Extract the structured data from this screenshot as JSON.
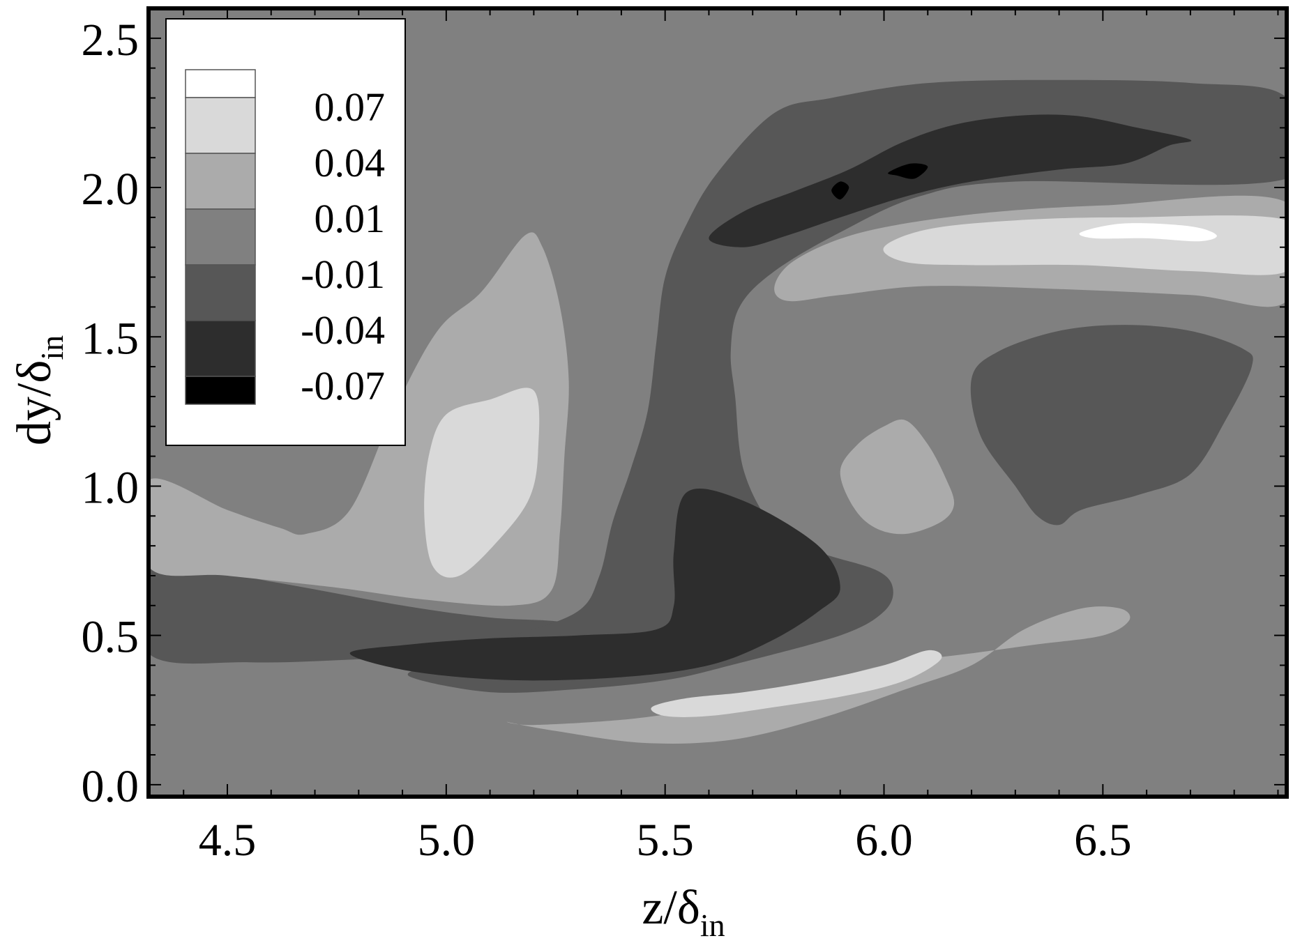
{
  "chart_data": {
    "type": "contour",
    "xlabel": {
      "base": "z/δ",
      "sub": "in"
    },
    "ylabel": {
      "base": "dy/δ",
      "sub": "in"
    },
    "xlim": [
      4.32,
      6.92
    ],
    "ylim": [
      -0.04,
      2.6
    ],
    "x_ticks": [
      {
        "value": 4.5,
        "label": "4.5"
      },
      {
        "value": 5.0,
        "label": "5.0"
      },
      {
        "value": 5.5,
        "label": "5.5"
      },
      {
        "value": 6.0,
        "label": "6.0"
      },
      {
        "value": 6.5,
        "label": "6.5"
      }
    ],
    "y_ticks": [
      {
        "value": 0.0,
        "label": "0.0"
      },
      {
        "value": 0.5,
        "label": "0.5"
      },
      {
        "value": 1.0,
        "label": "1.0"
      },
      {
        "value": 1.5,
        "label": "1.5"
      },
      {
        "value": 2.0,
        "label": "2.0"
      },
      {
        "value": 2.5,
        "label": "2.5"
      }
    ],
    "legend": {
      "placement": "top-left",
      "levels": [
        "0.07",
        "0.04",
        "0.01",
        "-0.01",
        "-0.04",
        "-0.07"
      ],
      "band_colors": [
        "#ffffff",
        "#d9d9d9",
        "#ababab",
        "#808080",
        "#575757",
        "#2d2d2d",
        "#000000"
      ]
    },
    "background_color": "#808080",
    "regions": [
      {
        "name": "left-lower-neg",
        "color": "#575757",
        "points": [
          [
            4.32,
            0.74
          ],
          [
            4.6,
            0.68
          ],
          [
            4.9,
            0.6
          ],
          [
            5.1,
            0.56
          ],
          [
            5.28,
            0.54
          ],
          [
            5.32,
            0.47
          ],
          [
            5.1,
            0.44
          ],
          [
            4.8,
            0.42
          ],
          [
            4.55,
            0.41
          ],
          [
            4.32,
            0.44
          ]
        ]
      },
      {
        "name": "left-pos",
        "color": "#ababab",
        "points": [
          [
            4.32,
            1.02
          ],
          [
            4.5,
            0.92
          ],
          [
            4.62,
            0.86
          ],
          [
            4.68,
            0.84
          ],
          [
            4.78,
            0.92
          ],
          [
            4.88,
            1.25
          ],
          [
            4.98,
            1.52
          ],
          [
            5.08,
            1.65
          ],
          [
            5.18,
            1.84
          ],
          [
            5.22,
            1.8
          ],
          [
            5.26,
            1.6
          ],
          [
            5.28,
            1.35
          ],
          [
            5.27,
            1.1
          ],
          [
            5.26,
            0.85
          ],
          [
            5.24,
            0.65
          ],
          [
            5.15,
            0.6
          ],
          [
            4.95,
            0.62
          ],
          [
            4.75,
            0.66
          ],
          [
            4.5,
            0.7
          ],
          [
            4.32,
            0.73
          ]
        ]
      },
      {
        "name": "left-pos-core",
        "color": "#d9d9d9",
        "points": [
          [
            4.95,
            0.9
          ],
          [
            4.96,
            1.1
          ],
          [
            5.0,
            1.24
          ],
          [
            5.1,
            1.29
          ],
          [
            5.2,
            1.32
          ],
          [
            5.21,
            1.12
          ],
          [
            5.19,
            0.96
          ],
          [
            5.12,
            0.82
          ],
          [
            5.03,
            0.7
          ],
          [
            4.97,
            0.73
          ]
        ]
      },
      {
        "name": "center-neg",
        "color": "#575757",
        "points": [
          [
            4.92,
            0.36
          ],
          [
            5.1,
            0.31
          ],
          [
            5.3,
            0.32
          ],
          [
            5.5,
            0.35
          ],
          [
            5.65,
            0.4
          ],
          [
            5.9,
            0.5
          ],
          [
            6.0,
            0.58
          ],
          [
            6.02,
            0.66
          ],
          [
            5.98,
            0.72
          ],
          [
            5.85,
            0.78
          ],
          [
            5.75,
            0.86
          ],
          [
            5.68,
            1.05
          ],
          [
            5.66,
            1.3
          ],
          [
            5.65,
            1.45
          ],
          [
            5.67,
            1.6
          ],
          [
            5.75,
            1.72
          ],
          [
            5.9,
            1.85
          ],
          [
            6.08,
            1.97
          ],
          [
            6.3,
            2.02
          ],
          [
            6.92,
            2.03
          ],
          [
            6.92,
            2.3
          ],
          [
            6.7,
            2.35
          ],
          [
            6.4,
            2.36
          ],
          [
            6.1,
            2.35
          ],
          [
            5.88,
            2.3
          ],
          [
            5.75,
            2.25
          ],
          [
            5.62,
            2.05
          ],
          [
            5.55,
            1.88
          ],
          [
            5.5,
            1.7
          ],
          [
            5.48,
            1.48
          ],
          [
            5.46,
            1.25
          ],
          [
            5.42,
            1.05
          ],
          [
            5.38,
            0.88
          ],
          [
            5.35,
            0.7
          ],
          [
            5.3,
            0.58
          ],
          [
            5.15,
            0.5
          ],
          [
            5.0,
            0.45
          ],
          [
            4.95,
            0.4
          ]
        ]
      },
      {
        "name": "center-neg-lower-core",
        "color": "#2d2d2d",
        "points": [
          [
            4.78,
            0.44
          ],
          [
            4.92,
            0.47
          ],
          [
            5.1,
            0.49
          ],
          [
            5.3,
            0.5
          ],
          [
            5.48,
            0.52
          ],
          [
            5.52,
            0.6
          ],
          [
            5.52,
            0.78
          ],
          [
            5.55,
            0.98
          ],
          [
            5.68,
            0.95
          ],
          [
            5.85,
            0.8
          ],
          [
            5.9,
            0.66
          ],
          [
            5.85,
            0.58
          ],
          [
            5.74,
            0.48
          ],
          [
            5.6,
            0.4
          ],
          [
            5.4,
            0.36
          ],
          [
            5.15,
            0.35
          ],
          [
            4.92,
            0.38
          ]
        ]
      },
      {
        "name": "upper-neg-core",
        "color": "#2d2d2d",
        "points": [
          [
            5.6,
            1.83
          ],
          [
            5.68,
            1.92
          ],
          [
            5.8,
            1.99
          ],
          [
            5.92,
            2.06
          ],
          [
            6.04,
            2.15
          ],
          [
            6.16,
            2.21
          ],
          [
            6.3,
            2.24
          ],
          [
            6.44,
            2.24
          ],
          [
            6.58,
            2.2
          ],
          [
            6.7,
            2.16
          ],
          [
            6.65,
            2.14
          ],
          [
            6.55,
            2.08
          ],
          [
            6.4,
            2.06
          ],
          [
            6.2,
            2.02
          ],
          [
            6.05,
            1.97
          ],
          [
            5.9,
            1.9
          ],
          [
            5.78,
            1.84
          ],
          [
            5.68,
            1.8
          ]
        ]
      },
      {
        "name": "upper-neg-spot-a",
        "color": "#000000",
        "points": [
          [
            5.88,
            1.99
          ],
          [
            5.9,
            2.02
          ],
          [
            5.92,
            2.0
          ],
          [
            5.9,
            1.96
          ]
        ]
      },
      {
        "name": "upper-neg-spot-b",
        "color": "#000000",
        "points": [
          [
            6.01,
            2.05
          ],
          [
            6.06,
            2.08
          ],
          [
            6.1,
            2.07
          ],
          [
            6.07,
            2.03
          ],
          [
            6.03,
            2.04
          ]
        ]
      },
      {
        "name": "right-pos-upper",
        "color": "#ababab",
        "points": [
          [
            5.75,
            1.67
          ],
          [
            5.8,
            1.76
          ],
          [
            5.95,
            1.85
          ],
          [
            6.2,
            1.91
          ],
          [
            6.5,
            1.94
          ],
          [
            6.92,
            1.95
          ],
          [
            6.92,
            1.62
          ],
          [
            6.7,
            1.64
          ],
          [
            6.4,
            1.66
          ],
          [
            6.1,
            1.67
          ],
          [
            5.9,
            1.64
          ],
          [
            5.78,
            1.62
          ]
        ]
      },
      {
        "name": "right-pos-upper-core",
        "color": "#d9d9d9",
        "points": [
          [
            6.0,
            1.8
          ],
          [
            6.1,
            1.86
          ],
          [
            6.3,
            1.89
          ],
          [
            6.55,
            1.9
          ],
          [
            6.92,
            1.89
          ],
          [
            6.92,
            1.72
          ],
          [
            6.7,
            1.72
          ],
          [
            6.45,
            1.74
          ],
          [
            6.2,
            1.74
          ],
          [
            6.05,
            1.75
          ]
        ]
      },
      {
        "name": "right-pos-upper-peak",
        "color": "#ffffff",
        "points": [
          [
            6.45,
            1.85
          ],
          [
            6.55,
            1.88
          ],
          [
            6.7,
            1.87
          ],
          [
            6.76,
            1.84
          ],
          [
            6.72,
            1.82
          ],
          [
            6.6,
            1.83
          ],
          [
            6.48,
            1.83
          ]
        ]
      },
      {
        "name": "mid-pos",
        "color": "#ababab",
        "points": [
          [
            5.9,
            1.05
          ],
          [
            5.94,
            1.14
          ],
          [
            6.0,
            1.2
          ],
          [
            6.05,
            1.22
          ],
          [
            6.1,
            1.14
          ],
          [
            6.14,
            1.03
          ],
          [
            6.16,
            0.94
          ],
          [
            6.13,
            0.88
          ],
          [
            6.05,
            0.84
          ],
          [
            5.98,
            0.86
          ],
          [
            5.93,
            0.93
          ]
        ]
      },
      {
        "name": "right-neg",
        "color": "#575757",
        "points": [
          [
            6.2,
            1.36
          ],
          [
            6.26,
            1.45
          ],
          [
            6.4,
            1.52
          ],
          [
            6.55,
            1.54
          ],
          [
            6.7,
            1.52
          ],
          [
            6.82,
            1.46
          ],
          [
            6.84,
            1.4
          ],
          [
            6.78,
            1.22
          ],
          [
            6.7,
            1.04
          ],
          [
            6.58,
            0.97
          ],
          [
            6.45,
            0.92
          ],
          [
            6.4,
            0.87
          ],
          [
            6.35,
            0.9
          ],
          [
            6.3,
            1.0
          ],
          [
            6.22,
            1.17
          ]
        ]
      },
      {
        "name": "bottom-pos",
        "color": "#ababab",
        "points": [
          [
            5.14,
            0.21
          ],
          [
            5.25,
            0.18
          ],
          [
            5.45,
            0.14
          ],
          [
            5.65,
            0.15
          ],
          [
            5.85,
            0.22
          ],
          [
            6.05,
            0.32
          ],
          [
            6.2,
            0.4
          ],
          [
            6.32,
            0.52
          ],
          [
            6.45,
            0.59
          ],
          [
            6.54,
            0.59
          ],
          [
            6.56,
            0.55
          ],
          [
            6.5,
            0.5
          ],
          [
            6.35,
            0.47
          ],
          [
            6.2,
            0.44
          ],
          [
            6.0,
            0.4
          ],
          [
            5.8,
            0.32
          ],
          [
            5.6,
            0.26
          ],
          [
            5.42,
            0.22
          ],
          [
            5.2,
            0.2
          ]
        ]
      },
      {
        "name": "bottom-pos-core",
        "color": "#d9d9d9",
        "points": [
          [
            5.47,
            0.26
          ],
          [
            5.55,
            0.29
          ],
          [
            5.68,
            0.31
          ],
          [
            5.85,
            0.35
          ],
          [
            6.0,
            0.4
          ],
          [
            6.1,
            0.45
          ],
          [
            6.13,
            0.42
          ],
          [
            6.05,
            0.35
          ],
          [
            5.92,
            0.3
          ],
          [
            5.75,
            0.26
          ],
          [
            5.6,
            0.23
          ],
          [
            5.5,
            0.23
          ]
        ]
      }
    ]
  }
}
